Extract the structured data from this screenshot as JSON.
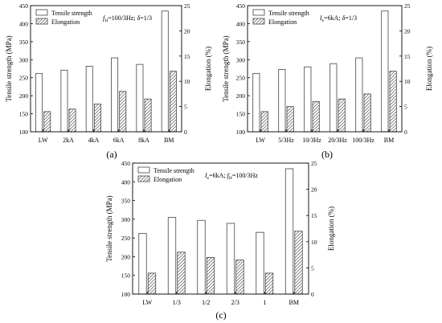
{
  "chart_data": [
    {
      "type": "bar",
      "panel_label": "(a)",
      "annotation": "f_H=100/3Hz; δ=1/3",
      "annotation_parts": [
        {
          "text": "f",
          "style": "italic"
        },
        {
          "text": "H",
          "style": "sub"
        },
        {
          "text": "=100/3Hz; ",
          "style": "normal"
        },
        {
          "text": "δ",
          "style": "italic"
        },
        {
          "text": "=1/3",
          "style": "normal"
        }
      ],
      "categories": [
        "LW",
        "2kA",
        "4kA",
        "6kA",
        "8kA",
        "BM"
      ],
      "series": [
        {
          "name": "Tensile strength",
          "axis": "left",
          "values": [
            262,
            271,
            282,
            305,
            287,
            435
          ]
        },
        {
          "name": "Elongation",
          "axis": "right",
          "values": [
            4.0,
            4.5,
            5.5,
            8.0,
            6.5,
            12.0
          ]
        }
      ],
      "ylabel": "Tensile strength (MPa)",
      "ylabel_right": "Elongation (%)",
      "ylim": [
        100,
        450
      ],
      "yticks": [
        100,
        150,
        200,
        250,
        300,
        350,
        400,
        450
      ],
      "ylim_right": [
        0,
        25
      ],
      "yticks_right": [
        0,
        5,
        10,
        15,
        20,
        25
      ],
      "legend": "top-left"
    },
    {
      "type": "bar",
      "panel_label": "(b)",
      "annotation": "I_e=6kA; δ=1/3",
      "annotation_parts": [
        {
          "text": "I",
          "style": "italic"
        },
        {
          "text": "e",
          "style": "sub"
        },
        {
          "text": "=6kA; ",
          "style": "normal"
        },
        {
          "text": "δ",
          "style": "italic"
        },
        {
          "text": "=1/3",
          "style": "normal"
        }
      ],
      "categories": [
        "LW",
        "5/3Hz",
        "10/3Hz",
        "20/3Hz",
        "100/3Hz",
        "BM"
      ],
      "series": [
        {
          "name": "Tensile strength",
          "axis": "left",
          "values": [
            262,
            273,
            280,
            289,
            305,
            435
          ]
        },
        {
          "name": "Elongation",
          "axis": "right",
          "values": [
            4.0,
            5.0,
            6.0,
            6.5,
            7.5,
            12.0
          ]
        }
      ],
      "ylabel": "Tensile strength (MPa)",
      "ylabel_right": "Elongation (%)",
      "ylim": [
        100,
        450
      ],
      "yticks": [
        100,
        150,
        200,
        250,
        300,
        350,
        400,
        450
      ],
      "ylim_right": [
        0,
        25
      ],
      "yticks_right": [
        0,
        5,
        10,
        15,
        20,
        25
      ],
      "legend": "top-left"
    },
    {
      "type": "bar",
      "panel_label": "(c)",
      "annotation": "I_e=6kA; f_H=100/3Hz",
      "annotation_parts": [
        {
          "text": "I",
          "style": "italic"
        },
        {
          "text": "e",
          "style": "sub"
        },
        {
          "text": "=6kA; ",
          "style": "normal"
        },
        {
          "text": "f",
          "style": "italic"
        },
        {
          "text": "H",
          "style": "sub"
        },
        {
          "text": "=100/3Hz",
          "style": "normal"
        }
      ],
      "categories": [
        "LW",
        "1/3",
        "1/2",
        "2/3",
        "1",
        "BM"
      ],
      "series": [
        {
          "name": "Tensile strength",
          "axis": "left",
          "values": [
            262,
            305,
            297,
            289,
            265,
            435
          ]
        },
        {
          "name": "Elongation",
          "axis": "right",
          "values": [
            4.0,
            8.0,
            7.0,
            6.5,
            4.0,
            12.0
          ]
        }
      ],
      "ylabel": "Tensile strength (MPa)",
      "ylabel_right": "Elongation (%)",
      "ylim": [
        100,
        450
      ],
      "yticks": [
        100,
        150,
        200,
        250,
        300,
        350,
        400,
        450
      ],
      "ylim_right": [
        0,
        25
      ],
      "yticks_right": [
        0,
        5,
        10,
        15,
        20,
        25
      ],
      "legend": "top-left"
    }
  ]
}
